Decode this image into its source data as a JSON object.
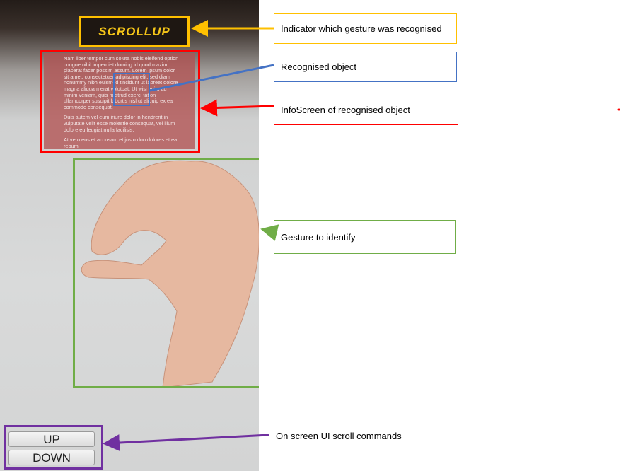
{
  "screen": {
    "gesture_indicator": "SCROLLUP",
    "info_screen": {
      "paragraphs": [
        "Nam liber tempor cum soluta nobis eleifend option congue nihil imperdiet doming id quod mazim placerat facer possim assum. Lorem ipsum dolor sit amet, consectetuer adipiscing elit, sed diam nonummy nibh euismod tincidunt ut laoreet dolore magna aliquam erat volutpat. Ut wisi enim ad minim veniam, quis nostrud exerci tation ullamcorper suscipit lobortis nisl ut aliquip ex ea commodo consequat.",
        "Duis autem vel eum iriure dolor in hendrerit in vulputate velit esse molestie consequat, vel illum dolore eu feugiat nulla facilisis.",
        "At vero eos et accusam et justo duo dolores et ea rebum."
      ]
    },
    "buttons": [
      "UP",
      "DOWN"
    ]
  },
  "annotations": [
    {
      "label": "Indicator which gesture was recognised"
    },
    {
      "label": "Recognised object"
    },
    {
      "label": "InfoScreen of recognised object"
    },
    {
      "label": "Gesture to identify"
    },
    {
      "label": "On screen UI scroll commands"
    }
  ]
}
